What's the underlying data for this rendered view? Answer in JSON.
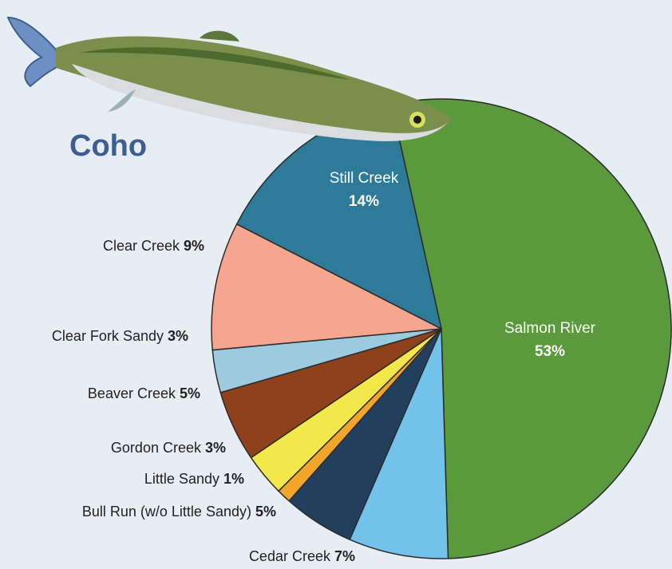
{
  "chart_data": {
    "type": "pie",
    "title": "Coho",
    "units": "%",
    "slices": [
      {
        "label": "Salmon River",
        "value": 53,
        "color": "#5a9a3c",
        "label_style": "inside"
      },
      {
        "label": "Cedar Creek",
        "value": 7,
        "color": "#72c2ec",
        "label_style": "outside"
      },
      {
        "label": "Bull Run (w/o Little Sandy)",
        "value": 5,
        "color": "#233f5e",
        "label_style": "outside"
      },
      {
        "label": "Little Sandy",
        "value": 1,
        "color": "#f1a52a",
        "label_style": "outside"
      },
      {
        "label": "Gordon Creek",
        "value": 3,
        "color": "#f2e84a",
        "label_style": "outside"
      },
      {
        "label": "Beaver Creek",
        "value": 5,
        "color": "#8f411c",
        "label_style": "outside"
      },
      {
        "label": "Clear Fork Sandy",
        "value": 3,
        "color": "#9ccbe0",
        "label_style": "outside"
      },
      {
        "label": "Clear Creek",
        "value": 9,
        "color": "#f6a68e",
        "label_style": "outside"
      },
      {
        "label": "Still Creek",
        "value": 14,
        "color": "#2e7b99",
        "label_style": "inside"
      }
    ]
  }
}
